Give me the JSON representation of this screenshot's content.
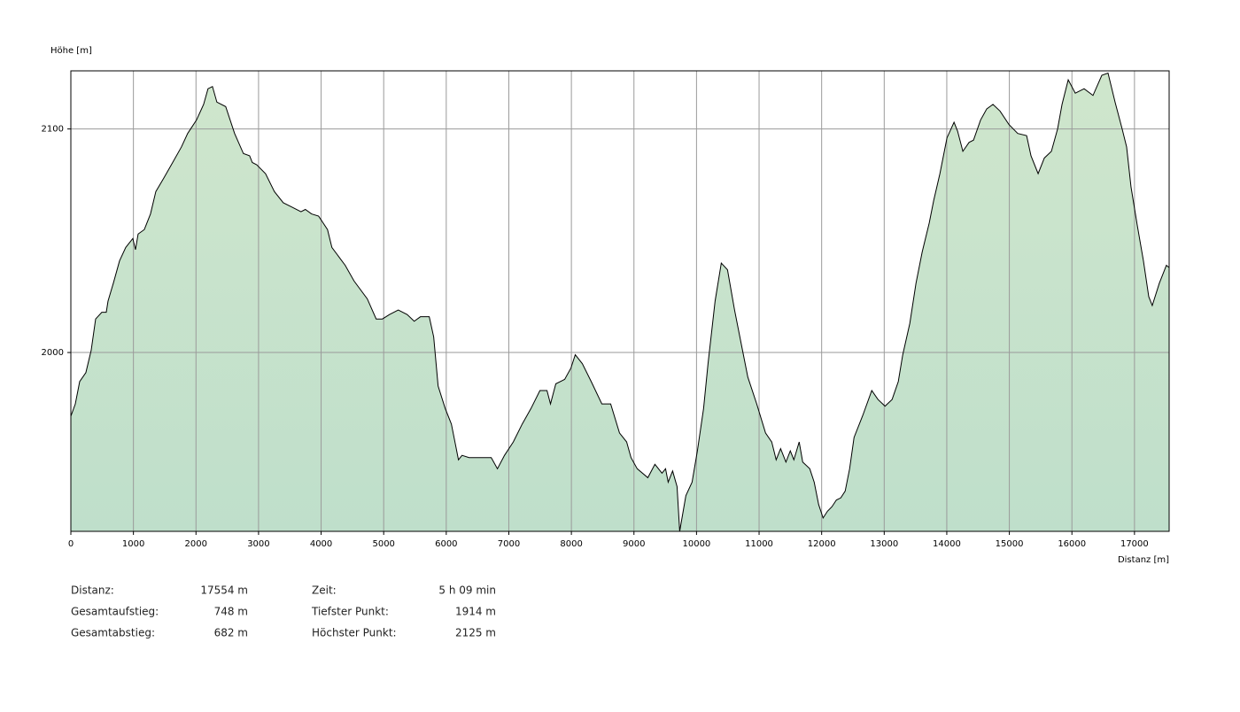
{
  "chart_data": {
    "type": "area",
    "y_label": "Höhe [m]",
    "x_label": "Distanz [m]",
    "color": "#cfe6cc",
    "color2": "#bfdfcb",
    "line_color": "#000000",
    "xlim": [
      0,
      17554
    ],
    "ylim": [
      1920,
      2126
    ],
    "xticks": [
      0,
      1000,
      2000,
      3000,
      4000,
      5000,
      6000,
      7000,
      8000,
      9000,
      10000,
      11000,
      12000,
      13000,
      14000,
      15000,
      16000,
      17000
    ],
    "yticks": [
      2000,
      2100
    ],
    "grid": true,
    "x": [
      0,
      71,
      141,
      240,
      325,
      396,
      495,
      566,
      594,
      679,
      778,
      877,
      990,
      1033,
      1075,
      1174,
      1273,
      1358,
      1485,
      1627,
      1768,
      1867,
      2008,
      2122,
      2192,
      2263,
      2334,
      2475,
      2617,
      2758,
      2857,
      2900,
      2970,
      3112,
      3253,
      3395,
      3536,
      3678,
      3748,
      3847,
      3960,
      4031,
      4102,
      4172,
      4385,
      4526,
      4738,
      4880,
      4979,
      5092,
      5233,
      5375,
      5488,
      5587,
      5728,
      5799,
      5870,
      5983,
      6082,
      6153,
      6195,
      6252,
      6365,
      6577,
      6719,
      6818,
      6931,
      7072,
      7214,
      7355,
      7497,
      7610,
      7666,
      7751,
      7893,
      7992,
      8062,
      8175,
      8317,
      8487,
      8628,
      8769,
      8883,
      8953,
      9052,
      9222,
      9335,
      9448,
      9505,
      9547,
      9618,
      9689,
      9731,
      9830,
      9929,
      10014,
      10113,
      10184,
      10297,
      10396,
      10495,
      10608,
      10721,
      10820,
      10962,
      11103,
      11202,
      11273,
      11344,
      11429,
      11499,
      11556,
      11641,
      11697,
      11810,
      11881,
      11952,
      12023,
      12093,
      12164,
      12235,
      12306,
      12376,
      12447,
      12518,
      12659,
      12801,
      12900,
      13013,
      13126,
      13225,
      13296,
      13409,
      13508,
      13607,
      13720,
      13791,
      13890,
      14003,
      14116,
      14173,
      14257,
      14356,
      14427,
      14540,
      14639,
      14738,
      14851,
      14993,
      15134,
      15276,
      15346,
      15460,
      15559,
      15672,
      15771,
      15842,
      15941,
      16054,
      16195,
      16337,
      16478,
      16577,
      16690,
      16803,
      16874,
      16945,
      17044,
      17143,
      17228,
      17284,
      17397,
      17510,
      17554
    ],
    "values": [
      1971.5,
      1977,
      1987,
      1991,
      2001,
      2015,
      2018,
      2018,
      2023,
      2031,
      2041,
      2047,
      2051,
      2046,
      2053,
      2055,
      2062,
      2072,
      2078,
      2085,
      2092,
      2098,
      2104,
      2111,
      2118,
      2119,
      2112,
      2110,
      2098,
      2089,
      2088,
      2085,
      2084,
      2080,
      2072,
      2067,
      2065,
      2063,
      2064,
      2062,
      2061,
      2058,
      2055,
      2047,
      2039,
      2032,
      2024,
      2015,
      2015,
      2017,
      2019,
      2017,
      2014,
      2016,
      2016,
      2007,
      1985,
      1975,
      1968,
      1958,
      1952,
      1954,
      1953,
      1953,
      1953,
      1948,
      1954,
      1960,
      1968,
      1975,
      1983,
      1983,
      1977,
      1986,
      1988,
      1993,
      1999,
      1995,
      1987,
      1977,
      1977,
      1964,
      1960,
      1953,
      1948,
      1944,
      1950,
      1946,
      1948,
      1942,
      1947,
      1940,
      1920,
      1936,
      1942,
      1956,
      1975,
      1995,
      2023,
      2040,
      2037,
      2019,
      2003,
      1989,
      1977,
      1964,
      1960,
      1952,
      1957,
      1951,
      1956,
      1952,
      1960,
      1951,
      1948,
      1942,
      1932,
      1926,
      1929,
      1931,
      1934,
      1935,
      1938,
      1948,
      1962,
      1972,
      1983,
      1979,
      1976,
      1979,
      1987,
      1999,
      2013,
      2031,
      2045,
      2058,
      2068,
      2080,
      2096,
      2103,
      2099,
      2090,
      2094,
      2095,
      2104,
      2109,
      2111,
      2108,
      2102,
      2098,
      2097,
      2088,
      2080,
      2087,
      2090,
      2100,
      2111,
      2122,
      2116,
      2118,
      2115,
      2124,
      2125,
      2112,
      2100,
      2092,
      2074,
      2057,
      2041,
      2025,
      2021,
      2031,
      2039,
      2038
    ]
  },
  "stats": [
    {
      "label": "Distanz:",
      "value": "17554 m"
    },
    {
      "label": "Gesamtaufstieg:",
      "value": "748 m"
    },
    {
      "label": "Gesamtabstieg:",
      "value": "682 m"
    },
    {
      "label": "Zeit:",
      "value": "5 h 09 min"
    },
    {
      "label": "Tiefster Punkt:",
      "value": "1914 m"
    },
    {
      "label": "Höchster Punkt:",
      "value": "2125 m"
    }
  ]
}
